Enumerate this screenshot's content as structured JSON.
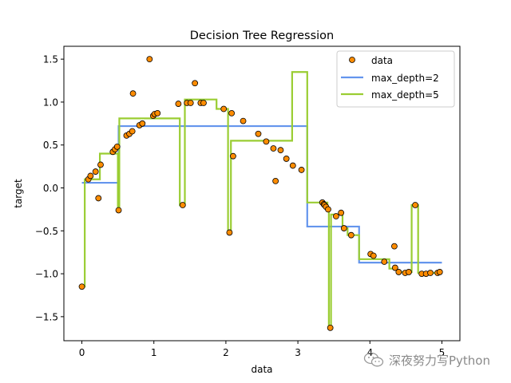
{
  "chart_data": {
    "type": "line",
    "title": "Decision Tree Regression",
    "xlabel": "data",
    "ylabel": "target",
    "xlim": [
      -0.25,
      5.25
    ],
    "ylim": [
      -1.78,
      1.65
    ],
    "xticks": [
      0,
      1,
      2,
      3,
      4,
      5
    ],
    "yticks": [
      -1.5,
      -1.0,
      -0.5,
      0.0,
      0.5,
      1.0,
      1.5
    ],
    "grid": false,
    "legend_position": "top-right",
    "data_series": {
      "name": "data",
      "color": "#ff8c00",
      "x": [
        0.0,
        0.09,
        0.12,
        0.19,
        0.23,
        0.26,
        0.43,
        0.46,
        0.49,
        0.51,
        0.62,
        0.66,
        0.7,
        0.71,
        0.8,
        0.84,
        0.94,
        0.99,
        1.01,
        1.05,
        1.34,
        1.4,
        1.46,
        1.51,
        1.57,
        1.65,
        1.69,
        1.97,
        2.05,
        2.08,
        2.1,
        2.24,
        2.45,
        2.56,
        2.66,
        2.69,
        2.76,
        2.84,
        2.93,
        3.05,
        3.34,
        3.36,
        3.37,
        3.39,
        3.42,
        3.45,
        3.53,
        3.6,
        3.64,
        3.74,
        4.01,
        4.05,
        4.2,
        4.34,
        4.35,
        4.4,
        4.49,
        4.54,
        4.63,
        4.72,
        4.78,
        4.84,
        4.94,
        4.97
      ],
      "y": [
        -1.15,
        0.1,
        0.14,
        0.19,
        -0.12,
        0.27,
        0.42,
        0.45,
        0.48,
        -0.26,
        0.61,
        0.63,
        0.66,
        1.1,
        0.73,
        0.75,
        1.5,
        0.84,
        0.86,
        0.87,
        0.98,
        -0.2,
        0.99,
        0.99,
        1.22,
        0.99,
        0.99,
        0.92,
        -0.52,
        0.87,
        0.37,
        0.78,
        0.63,
        0.54,
        0.46,
        0.08,
        0.44,
        0.34,
        0.26,
        0.21,
        -0.17,
        -0.19,
        -0.2,
        -0.22,
        -0.25,
        -1.63,
        -0.33,
        -0.29,
        -0.47,
        -0.55,
        -0.77,
        -0.79,
        -0.86,
        -0.68,
        -0.93,
        -0.98,
        -0.99,
        -0.98,
        -0.2,
        -1.0,
        -1.0,
        -0.99,
        -0.99,
        -0.98
      ]
    },
    "series": [
      {
        "name": "max_depth=2",
        "color": "#6495ed",
        "steps": [
          [
            0.0,
            0.06
          ],
          [
            0.51,
            0.06
          ],
          [
            0.51,
            0.72
          ],
          [
            3.13,
            0.72
          ],
          [
            3.13,
            -0.45
          ],
          [
            3.85,
            -0.45
          ],
          [
            3.85,
            -0.87
          ],
          [
            5.0,
            -0.87
          ]
        ]
      },
      {
        "name": "max_depth=5",
        "color": "#9acd32",
        "steps": [
          [
            0.0,
            -1.15
          ],
          [
            0.04,
            -1.15
          ],
          [
            0.04,
            0.1
          ],
          [
            0.25,
            0.1
          ],
          [
            0.25,
            0.4
          ],
          [
            0.5,
            0.4
          ],
          [
            0.5,
            -0.26
          ],
          [
            0.52,
            -0.26
          ],
          [
            0.52,
            0.81
          ],
          [
            1.36,
            0.81
          ],
          [
            1.36,
            -0.2
          ],
          [
            1.43,
            -0.2
          ],
          [
            1.43,
            1.03
          ],
          [
            1.87,
            1.03
          ],
          [
            1.87,
            0.92
          ],
          [
            2.03,
            0.92
          ],
          [
            2.03,
            -0.52
          ],
          [
            2.07,
            -0.52
          ],
          [
            2.07,
            0.55
          ],
          [
            2.92,
            0.55
          ],
          [
            2.92,
            1.35
          ],
          [
            3.13,
            1.35
          ],
          [
            3.13,
            -0.17
          ],
          [
            3.41,
            -0.17
          ],
          [
            3.41,
            -0.25
          ],
          [
            3.43,
            -0.25
          ],
          [
            3.43,
            -1.63
          ],
          [
            3.46,
            -1.63
          ],
          [
            3.46,
            -0.31
          ],
          [
            3.62,
            -0.31
          ],
          [
            3.62,
            -0.47
          ],
          [
            3.69,
            -0.47
          ],
          [
            3.69,
            -0.55
          ],
          [
            3.85,
            -0.55
          ],
          [
            3.85,
            -0.83
          ],
          [
            4.27,
            -0.83
          ],
          [
            4.27,
            -0.94
          ],
          [
            4.38,
            -0.94
          ],
          [
            4.38,
            -0.98
          ],
          [
            4.58,
            -0.98
          ],
          [
            4.58,
            -0.2
          ],
          [
            4.67,
            -0.2
          ],
          [
            4.67,
            -0.99
          ],
          [
            5.0,
            -0.99
          ]
        ]
      }
    ]
  },
  "watermark": {
    "text": "深夜努力写Python",
    "icon": "wechat-icon"
  }
}
